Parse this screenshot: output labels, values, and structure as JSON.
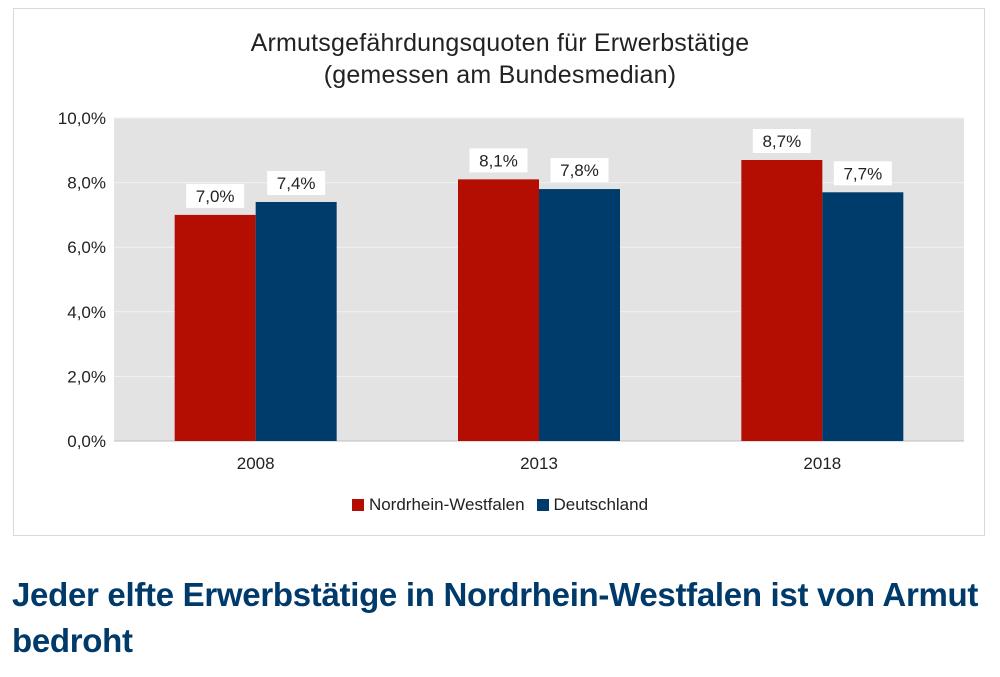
{
  "chart_data": {
    "type": "bar",
    "title": "Armutsgefährdungsquoten für Erwerbstätige",
    "subtitle": "(gemessen am Bundesmedian)",
    "categories": [
      "2008",
      "2013",
      "2018"
    ],
    "series": [
      {
        "name": "Nordrhein-Westfalen",
        "color": "#b40d02",
        "values": [
          7.0,
          8.1,
          8.7
        ],
        "labels": [
          "7,0%",
          "8,1%",
          "8,7%"
        ]
      },
      {
        "name": "Deutschland",
        "color": "#003c6b",
        "values": [
          7.4,
          7.8,
          7.7
        ],
        "labels": [
          "7,4%",
          "7,8%",
          "7,7%"
        ]
      }
    ],
    "ylim": [
      0,
      10
    ],
    "yticks": [
      0,
      2,
      4,
      6,
      8,
      10
    ],
    "ytick_labels": [
      "0,0%",
      "2,0%",
      "4,0%",
      "6,0%",
      "8,0%",
      "10,0%"
    ],
    "grid": true,
    "plot_background": "#e3e3e3",
    "legend_position": "bottom"
  },
  "headline": "Jeder elfte Erwerbstätige in Nordrhein-Westfalen ist von Armut bedroht"
}
